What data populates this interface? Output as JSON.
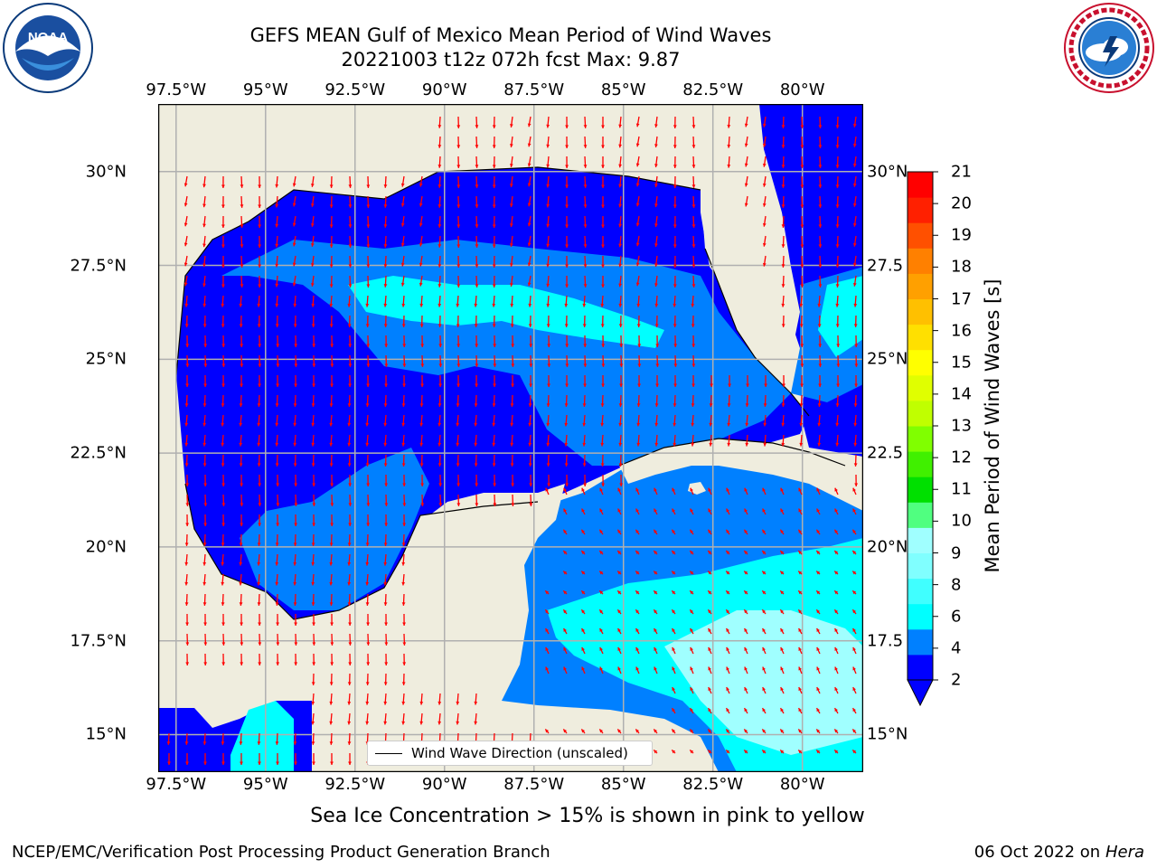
{
  "title": {
    "line1": "GEFS MEAN Gulf of Mexico Mean Period of Wind Waves",
    "line2": "20221003 t12z 072h fcst   Max: 9.87"
  },
  "logos": {
    "left": "noaa-logo",
    "right": "nws-logo",
    "nws_ring_text": "NATIONAL WEATHER SERVICE"
  },
  "map": {
    "lon_labels": [
      "97.5°W",
      "95°W",
      "92.5°W",
      "90°W",
      "87.5°W",
      "85°W",
      "82.5°W",
      "80°W"
    ],
    "lat_labels_left": [
      "30°N",
      "27.5°N",
      "25°N",
      "22.5°N",
      "20°N",
      "17.5°N",
      "15°N"
    ],
    "lat_labels_right": [
      "30°N",
      "27.5",
      "25°N",
      "22.5",
      "20°N",
      "17.5",
      "15°N"
    ],
    "lon_range": [
      -98,
      -78.3
    ],
    "lat_range": [
      14.0,
      31.8
    ],
    "land_color": "#efedde",
    "arrow_color": "#ff0000",
    "legend_label": "Wind Wave Direction (unscaled)"
  },
  "colorbar": {
    "title": "Mean Period of Wind Waves [s]",
    "ticks": [
      "21",
      "20",
      "19",
      "18",
      "17",
      "16",
      "15",
      "14",
      "13",
      "12",
      "11",
      "10",
      "9",
      "8",
      "6",
      "4",
      "2"
    ],
    "colors": [
      "#0000ff",
      "#0080ff",
      "#00ffff",
      "#40ffff",
      "#80ffff",
      "#a0ffff",
      "#50ff80",
      "#00e000",
      "#40f000",
      "#80ff00",
      "#c0ff00",
      "#e0ff00",
      "#ffff00",
      "#ffe000",
      "#ffc000",
      "#ffa000",
      "#ff8000",
      "#ff5000",
      "#ff2000",
      "#ff0000"
    ]
  },
  "sea_ice_note": "Sea Ice Concentration > 15% is shown in pink to yellow",
  "footer": {
    "left": "NCEP/EMC/Verification Post Processing Product Generation Branch",
    "right_prefix": "06 Oct 2022 on ",
    "right_host": "Hera"
  }
}
